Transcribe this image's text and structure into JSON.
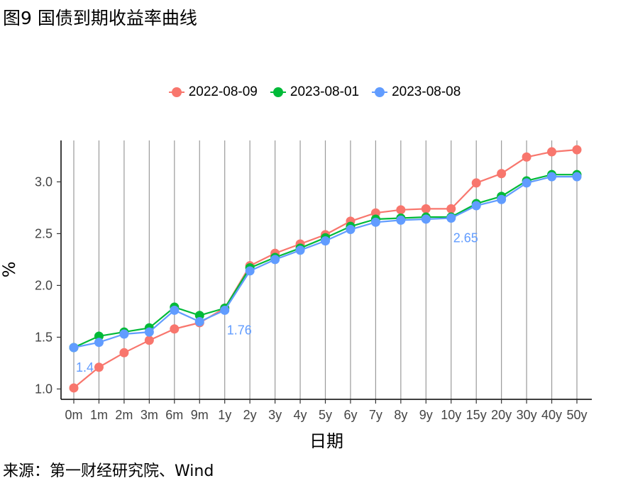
{
  "figure": {
    "title": "图9 国债到期收益率曲线",
    "source": "来源：第一财经研究院、Wind"
  },
  "chart_data": {
    "type": "line",
    "xlabel": "日期",
    "ylabel": "%",
    "ylim": [
      0.9,
      3.4
    ],
    "yticks": [
      1.0,
      1.5,
      2.0,
      2.5,
      3.0
    ],
    "ytick_labels": [
      "1.0",
      "1.5",
      "2.0",
      "2.5",
      "3.0"
    ],
    "grid": "vertical",
    "legend_position": "top",
    "categories": [
      "0m",
      "1m",
      "2m",
      "3m",
      "6m",
      "9m",
      "1y",
      "2y",
      "3y",
      "4y",
      "5y",
      "6y",
      "7y",
      "8y",
      "9y",
      "10y",
      "15y",
      "20y",
      "30y",
      "40y",
      "50y"
    ],
    "series": [
      {
        "name": "2022-08-09",
        "color": "#F8766D",
        "values": [
          1.01,
          1.21,
          1.35,
          1.47,
          1.58,
          1.64,
          1.78,
          2.19,
          2.31,
          2.4,
          2.49,
          2.62,
          2.7,
          2.73,
          2.74,
          2.74,
          2.99,
          3.08,
          3.24,
          3.29,
          3.31
        ]
      },
      {
        "name": "2023-08-01",
        "color": "#00BA38",
        "values": [
          1.4,
          1.51,
          1.55,
          1.59,
          1.79,
          1.71,
          1.78,
          2.17,
          2.27,
          2.36,
          2.46,
          2.57,
          2.64,
          2.65,
          2.66,
          2.66,
          2.79,
          2.86,
          3.01,
          3.07,
          3.07
        ]
      },
      {
        "name": "2023-08-08",
        "color": "#619CFF",
        "values": [
          1.4,
          1.45,
          1.53,
          1.55,
          1.76,
          1.65,
          1.76,
          2.14,
          2.25,
          2.34,
          2.43,
          2.54,
          2.61,
          2.63,
          2.64,
          2.65,
          2.77,
          2.83,
          2.99,
          3.05,
          3.05
        ]
      }
    ],
    "annotations": [
      {
        "text": "1.4",
        "category": "0m",
        "series": "2023-08-08",
        "color": "#619CFF"
      },
      {
        "text": "1.76",
        "category": "1y",
        "series": "2023-08-08",
        "color": "#619CFF"
      },
      {
        "text": "2.65",
        "category": "10y",
        "series": "2023-08-08",
        "color": "#619CFF"
      }
    ]
  }
}
